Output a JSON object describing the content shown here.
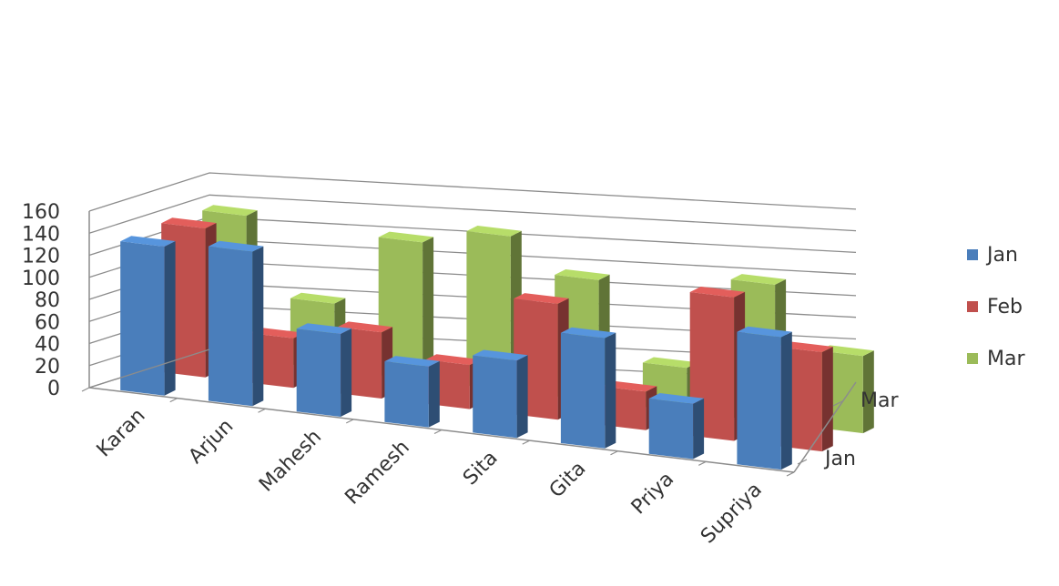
{
  "chart_data": {
    "type": "bar",
    "subtype": "3d-clustered-column",
    "title": "",
    "xlabel": "",
    "ylabel": "",
    "ylim": [
      0,
      160
    ],
    "yticks": [
      0,
      20,
      40,
      60,
      80,
      100,
      120,
      140,
      160
    ],
    "categories": [
      "Karan",
      "Arjun",
      "Mahesh",
      "Ramesh",
      "Sita",
      "Gita",
      "Priya",
      "Supriya"
    ],
    "depth_labels": [
      "Jan",
      "Mar"
    ],
    "series": [
      {
        "name": "Jan",
        "color": "#4a7ebb",
        "values": [
          135,
          140,
          75,
          55,
          70,
          100,
          50,
          120
        ]
      },
      {
        "name": "Feb",
        "color": "#c0504d",
        "values": [
          135,
          45,
          60,
          40,
          105,
          35,
          130,
          90
        ]
      },
      {
        "name": "Mar",
        "color": "#9bbb59",
        "values": [
          130,
          60,
          125,
          140,
          110,
          40,
          125,
          70
        ]
      }
    ],
    "grid": true,
    "legend": "right"
  }
}
